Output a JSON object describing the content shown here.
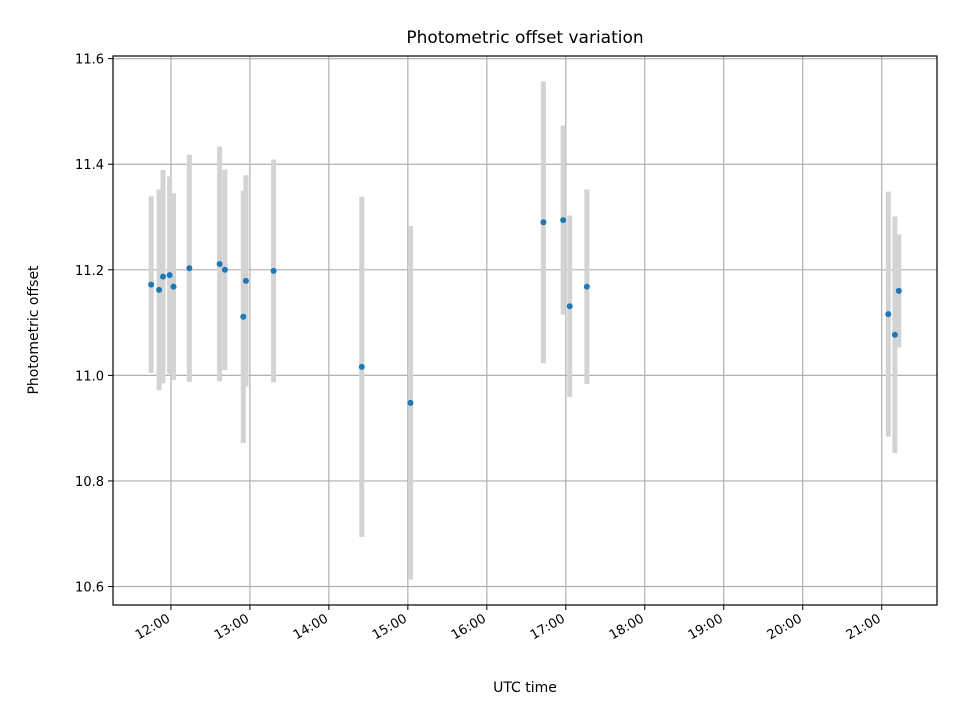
{
  "chart_data": {
    "type": "scatter",
    "title": "Photometric offset variation",
    "xlabel": "UTC time",
    "ylabel": "Photometric offset",
    "x_unit": "UTC hh:mm",
    "xlim": [
      "11:16",
      "21:42"
    ],
    "ylim": [
      10.565,
      11.605
    ],
    "xticks": [
      "12:00",
      "13:00",
      "14:00",
      "15:00",
      "16:00",
      "17:00",
      "18:00",
      "19:00",
      "20:00",
      "21:00"
    ],
    "yticks": [
      "10.6",
      "10.8",
      "11.0",
      "11.2",
      "11.4",
      "11.6"
    ],
    "grid": true,
    "point_color": "#1f77b4",
    "errorbar_color": "#d3d3d3",
    "points": [
      {
        "x": "11:45",
        "y": 11.172,
        "yerr": 0.167
      },
      {
        "x": "11:51",
        "y": 11.162,
        "yerr": 0.19
      },
      {
        "x": "11:54",
        "y": 11.187,
        "yerr": 0.202
      },
      {
        "x": "11:59",
        "y": 11.19,
        "yerr": 0.187
      },
      {
        "x": "12:02",
        "y": 11.168,
        "yerr": 0.177
      },
      {
        "x": "12:14",
        "y": 11.203,
        "yerr": 0.215
      },
      {
        "x": "12:37",
        "y": 11.211,
        "yerr": 0.222
      },
      {
        "x": "12:41",
        "y": 11.2,
        "yerr": 0.19
      },
      {
        "x": "12:55",
        "y": 11.111,
        "yerr": 0.239
      },
      {
        "x": "12:57",
        "y": 11.179,
        "yerr": 0.2
      },
      {
        "x": "13:18",
        "y": 11.198,
        "yerr": 0.211
      },
      {
        "x": "14:25",
        "y": 11.016,
        "yerr": 0.322
      },
      {
        "x": "15:02",
        "y": 10.948,
        "yerr": 0.335
      },
      {
        "x": "16:43",
        "y": 11.29,
        "yerr": 0.267
      },
      {
        "x": "16:58",
        "y": 11.294,
        "yerr": 0.179
      },
      {
        "x": "17:03",
        "y": 11.131,
        "yerr": 0.172
      },
      {
        "x": "17:16",
        "y": 11.168,
        "yerr": 0.184
      },
      {
        "x": "21:05",
        "y": 11.116,
        "yerr": 0.232
      },
      {
        "x": "21:10",
        "y": 11.077,
        "yerr": 0.224
      },
      {
        "x": "21:13",
        "y": 11.16,
        "yerr": 0.107
      }
    ]
  }
}
